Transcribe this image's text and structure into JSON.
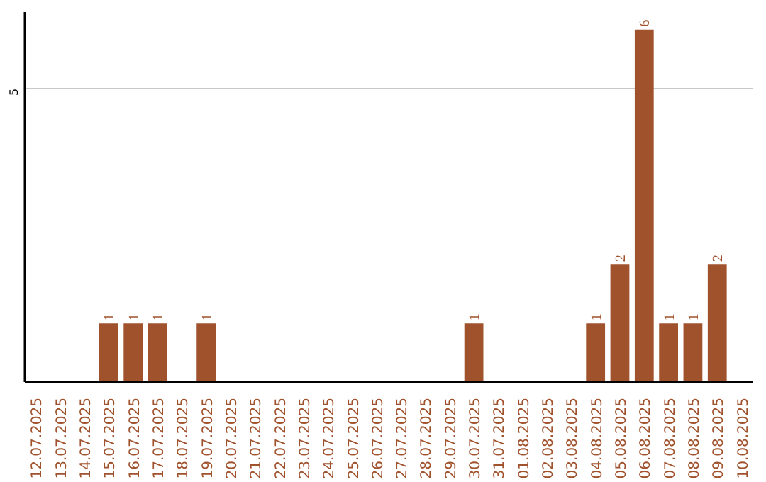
{
  "chart_data": {
    "type": "bar",
    "categories": [
      "12.07.2025",
      "13.07.2025",
      "14.07.2025",
      "15.07.2025",
      "16.07.2025",
      "17.07.2025",
      "18.07.2025",
      "19.07.2025",
      "20.07.2025",
      "21.07.2025",
      "22.07.2025",
      "23.07.2025",
      "24.07.2025",
      "25.07.2025",
      "26.07.2025",
      "27.07.2025",
      "28.07.2025",
      "29.07.2025",
      "30.07.2025",
      "31.07.2025",
      "01.08.2025",
      "02.08.2025",
      "03.08.2025",
      "04.08.2025",
      "05.08.2025",
      "06.08.2025",
      "07.08.2025",
      "08.08.2025",
      "09.08.2025",
      "10.08.2025"
    ],
    "values": [
      0,
      0,
      0,
      1,
      1,
      1,
      0,
      1,
      0,
      0,
      0,
      0,
      0,
      0,
      0,
      0,
      0,
      0,
      1,
      0,
      0,
      0,
      0,
      1,
      2,
      6,
      1,
      1,
      2,
      0
    ],
    "value_labels": [
      null,
      null,
      null,
      "1",
      "1",
      "1",
      null,
      "1",
      null,
      null,
      null,
      null,
      null,
      null,
      null,
      null,
      null,
      null,
      "1",
      null,
      null,
      null,
      null,
      "1",
      "2",
      "6",
      "1",
      "1",
      "2",
      null
    ],
    "color": "#a0522d",
    "ylim": [
      0,
      6.3
    ],
    "yticks": [
      5
    ],
    "grid": "y"
  }
}
